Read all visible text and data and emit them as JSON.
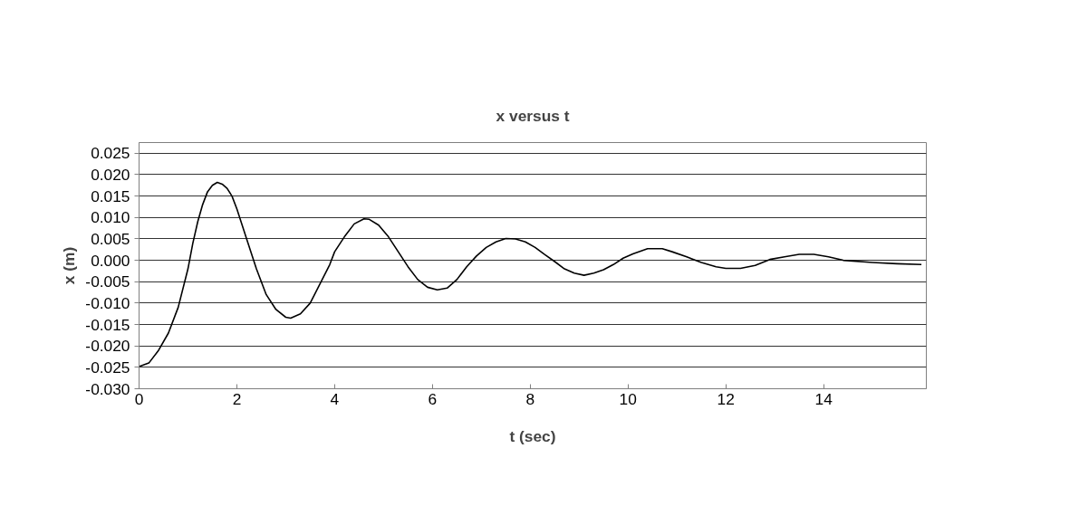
{
  "chart_data": {
    "type": "line",
    "title": "x versus t",
    "xlabel": "t (sec)",
    "ylabel": "x (m)",
    "x": [
      0,
      0.2,
      0.4,
      0.6,
      0.8,
      1.0,
      1.1,
      1.2,
      1.3,
      1.4,
      1.5,
      1.6,
      1.7,
      1.8,
      1.9,
      2.0,
      2.2,
      2.4,
      2.6,
      2.8,
      3.0,
      3.1,
      3.3,
      3.5,
      3.7,
      3.9,
      4.0,
      4.2,
      4.4,
      4.6,
      4.7,
      4.9,
      5.1,
      5.3,
      5.5,
      5.7,
      5.9,
      6.1,
      6.3,
      6.5,
      6.7,
      6.9,
      7.1,
      7.3,
      7.5,
      7.7,
      7.9,
      8.1,
      8.3,
      8.5,
      8.7,
      8.9,
      9.1,
      9.3,
      9.5,
      9.7,
      9.9,
      10.1,
      10.4,
      10.7,
      10.9,
      11.2,
      11.5,
      11.8,
      12.0,
      12.3,
      12.6,
      12.9,
      13.2,
      13.5,
      13.8,
      14.1,
      14.4,
      15.0,
      15.5,
      16.0
    ],
    "series": [
      {
        "color": "#000000",
        "values": [
          -0.0248,
          -0.024,
          -0.021,
          -0.017,
          -0.011,
          -0.002,
          0.004,
          0.009,
          0.013,
          0.016,
          0.0175,
          0.0182,
          0.0178,
          0.0168,
          0.015,
          0.012,
          0.005,
          -0.002,
          -0.008,
          -0.0115,
          -0.0133,
          -0.0135,
          -0.0125,
          -0.01,
          -0.0055,
          -0.001,
          0.002,
          0.0055,
          0.0085,
          0.0097,
          0.0096,
          0.0082,
          0.0055,
          0.002,
          -0.0015,
          -0.0045,
          -0.0063,
          -0.0069,
          -0.0065,
          -0.0045,
          -0.0015,
          0.001,
          0.003,
          0.0043,
          0.0051,
          0.005,
          0.0043,
          0.003,
          0.0013,
          -0.0003,
          -0.002,
          -0.003,
          -0.0035,
          -0.003,
          -0.0022,
          -0.001,
          0.0005,
          0.0015,
          0.0027,
          0.0027,
          0.002,
          0.0008,
          -0.0005,
          -0.0015,
          -0.0019,
          -0.0019,
          -0.0012,
          0.0002,
          0.0008,
          0.0014,
          0.0014,
          0.0008,
          0.0,
          -0.0005,
          -0.0008,
          -0.001
        ]
      }
    ],
    "xlim": [
      0,
      16.1
    ],
    "ylim": [
      -0.03,
      0.0275
    ],
    "xticks": [
      0,
      2,
      4,
      6,
      8,
      10,
      12,
      14
    ],
    "yticks": [
      {
        "value": 0.025,
        "label": "0.025"
      },
      {
        "value": 0.02,
        "label": "0.020"
      },
      {
        "value": 0.015,
        "label": "0.015"
      },
      {
        "value": 0.01,
        "label": "0.010"
      },
      {
        "value": 0.005,
        "label": "0.005"
      },
      {
        "value": 0,
        "label": "0.000"
      },
      {
        "value": -0.005,
        "label": "-0.005"
      },
      {
        "value": -0.01,
        "label": "-0.010"
      },
      {
        "value": -0.015,
        "label": "-0.015"
      },
      {
        "value": -0.02,
        "label": "-0.020"
      },
      {
        "value": -0.025,
        "label": "-0.025"
      },
      {
        "value": -0.03,
        "label": "-0.030"
      }
    ],
    "grid": "y",
    "marker": "none",
    "line_style": "solid"
  }
}
